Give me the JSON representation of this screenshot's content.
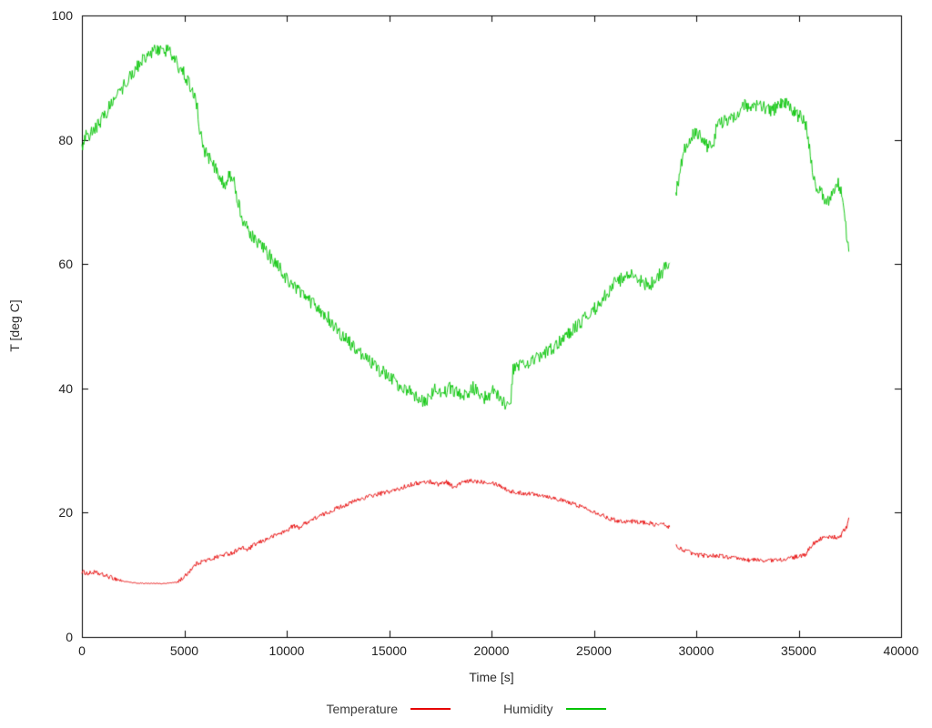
{
  "chart_data": {
    "type": "line",
    "title": "",
    "xlabel": "Time [s]",
    "ylabel": "T [deg C]",
    "xlim": [
      0,
      40000
    ],
    "ylim": [
      0,
      100
    ],
    "xticks": [
      0,
      5000,
      10000,
      15000,
      20000,
      25000,
      30000,
      35000,
      40000
    ],
    "yticks": [
      0,
      20,
      40,
      60,
      80,
      100
    ],
    "grid": false,
    "legend_position": "bottom-center",
    "axis_color": "#000000",
    "background": "#ffffff",
    "series": [
      {
        "name": "Temperature",
        "color": "#e60000",
        "noise": 0.35,
        "segments": [
          [
            [
              0,
              10.5
            ],
            [
              300,
              10.2
            ],
            [
              600,
              10.4
            ],
            [
              1000,
              10.0
            ],
            [
              1500,
              9.5
            ],
            [
              2000,
              9.0,
              0.08
            ],
            [
              2500,
              8.7,
              0.08
            ],
            [
              3200,
              8.6,
              0.08
            ],
            [
              4000,
              8.6,
              0.08
            ],
            [
              4600,
              8.8
            ],
            [
              5000,
              9.6
            ],
            [
              5300,
              10.8
            ],
            [
              5600,
              11.8
            ],
            [
              5900,
              12.2
            ],
            [
              6200,
              12.4
            ],
            [
              6600,
              12.9
            ],
            [
              7000,
              13.3
            ],
            [
              7400,
              13.6
            ],
            [
              7600,
              14.1
            ],
            [
              7900,
              14.3
            ],
            [
              8100,
              14.0
            ],
            [
              8400,
              14.8
            ],
            [
              8800,
              15.4
            ],
            [
              9200,
              16.0
            ],
            [
              9600,
              16.6
            ],
            [
              10000,
              17.1
            ],
            [
              10300,
              17.9
            ],
            [
              10600,
              17.6
            ],
            [
              11000,
              18.5
            ],
            [
              11500,
              19.3
            ],
            [
              12000,
              20.0
            ],
            [
              12500,
              20.8
            ],
            [
              13000,
              21.4
            ],
            [
              13500,
              22.1
            ],
            [
              14000,
              22.6
            ],
            [
              14500,
              23.0
            ],
            [
              15000,
              23.4
            ],
            [
              15500,
              23.8
            ],
            [
              16000,
              24.5
            ],
            [
              16500,
              24.8
            ],
            [
              17000,
              25.0
            ],
            [
              17400,
              24.6
            ],
            [
              17800,
              25.0
            ],
            [
              18200,
              24.0
            ],
            [
              18500,
              24.8
            ],
            [
              19000,
              25.1
            ],
            [
              19500,
              25.0
            ],
            [
              20000,
              24.9
            ],
            [
              20400,
              24.4
            ],
            [
              20800,
              23.6
            ],
            [
              21200,
              23.2
            ],
            [
              21800,
              23.1
            ],
            [
              22400,
              22.9
            ],
            [
              23000,
              22.4
            ],
            [
              23600,
              21.8
            ],
            [
              24200,
              21.2
            ],
            [
              24800,
              20.5
            ],
            [
              25200,
              19.9
            ],
            [
              25600,
              19.3
            ],
            [
              26000,
              18.8
            ],
            [
              26500,
              18.6
            ],
            [
              27000,
              18.6
            ],
            [
              27500,
              18.4
            ],
            [
              28000,
              18.1
            ],
            [
              28400,
              18.1
            ],
            [
              28700,
              17.7
            ]
          ],
          [
            [
              29000,
              14.6
            ],
            [
              29300,
              14.1
            ],
            [
              29700,
              13.6
            ],
            [
              30000,
              13.2
            ],
            [
              30500,
              13.1
            ],
            [
              31000,
              13.1
            ],
            [
              31500,
              12.9
            ],
            [
              32000,
              12.6
            ],
            [
              32500,
              12.4
            ],
            [
              33000,
              12.4
            ],
            [
              33500,
              12.3
            ],
            [
              34000,
              12.4
            ],
            [
              34500,
              12.6
            ],
            [
              35000,
              13.0
            ],
            [
              35300,
              13.1
            ],
            [
              35600,
              14.6
            ],
            [
              35900,
              15.6
            ],
            [
              36200,
              15.9
            ],
            [
              36600,
              16.1
            ],
            [
              37000,
              16.0
            ],
            [
              37200,
              17.1
            ],
            [
              37350,
              17.6
            ],
            [
              37450,
              19.2
            ]
          ]
        ]
      },
      {
        "name": "Humidity",
        "color": "#00c300",
        "noise": 1.1,
        "segments": [
          [
            [
              0,
              78.5
            ],
            [
              200,
              80.5
            ],
            [
              400,
              81.0
            ],
            [
              700,
              82.0
            ],
            [
              1000,
              83.5
            ],
            [
              1400,
              85.5
            ],
            [
              1800,
              87.5
            ],
            [
              2200,
              89.5
            ],
            [
              2600,
              91.5
            ],
            [
              3000,
              93.0
            ],
            [
              3400,
              94.0
            ],
            [
              3800,
              94.5
            ],
            [
              4200,
              94.3
            ],
            [
              4500,
              93.0
            ],
            [
              4800,
              91.5
            ],
            [
              5100,
              90.0
            ],
            [
              5400,
              88.0
            ],
            [
              5600,
              86.0
            ],
            [
              5750,
              81.5
            ],
            [
              5900,
              79.0
            ],
            [
              6100,
              77.5
            ],
            [
              6400,
              76.0
            ],
            [
              6700,
              74.5
            ],
            [
              7000,
              72.5
            ],
            [
              7200,
              74.8
            ],
            [
              7400,
              73.5
            ],
            [
              7600,
              70.5
            ],
            [
              7900,
              66.5
            ],
            [
              8200,
              65.0
            ],
            [
              8500,
              63.5
            ],
            [
              9000,
              62.0
            ],
            [
              9500,
              60.0
            ],
            [
              10000,
              57.5
            ],
            [
              10500,
              56.0
            ],
            [
              11000,
              54.5
            ],
            [
              11500,
              53.0
            ],
            [
              12000,
              51.5
            ],
            [
              12500,
              49.0
            ],
            [
              13000,
              47.5
            ],
            [
              13500,
              46.0
            ],
            [
              14000,
              44.5
            ],
            [
              14500,
              43.0
            ],
            [
              15000,
              42.0
            ],
            [
              15500,
              40.3
            ],
            [
              16000,
              39.5
            ],
            [
              16500,
              37.8
            ],
            [
              17000,
              38.6
            ],
            [
              17300,
              40.0
            ],
            [
              17700,
              39.4
            ],
            [
              18000,
              40.2
            ],
            [
              18400,
              39.0
            ],
            [
              18800,
              38.6
            ],
            [
              19100,
              40.2
            ],
            [
              19400,
              39.0
            ],
            [
              19800,
              38.4
            ],
            [
              20100,
              39.6
            ],
            [
              20400,
              38.6
            ],
            [
              20700,
              37.0
            ],
            [
              20950,
              38.5
            ],
            [
              21050,
              42.8
            ],
            [
              21400,
              43.6
            ],
            [
              21800,
              44.2
            ],
            [
              22200,
              44.8
            ],
            [
              22600,
              45.6
            ],
            [
              23000,
              46.6
            ],
            [
              23500,
              48.0
            ],
            [
              24000,
              49.6
            ],
            [
              24500,
              51.0
            ],
            [
              25000,
              52.6
            ],
            [
              25500,
              54.6
            ],
            [
              26000,
              57.0
            ],
            [
              26400,
              57.6
            ],
            [
              26800,
              58.2
            ],
            [
              27100,
              57.6
            ],
            [
              27400,
              57.0
            ],
            [
              27700,
              56.6
            ],
            [
              28000,
              57.6
            ],
            [
              28300,
              58.6
            ],
            [
              28700,
              60.2
            ]
          ],
          [
            [
              29000,
              71.0
            ],
            [
              29200,
              75.0
            ],
            [
              29400,
              78.0
            ],
            [
              29600,
              80.0
            ],
            [
              29900,
              81.0
            ],
            [
              30200,
              80.8
            ],
            [
              30500,
              79.0
            ],
            [
              30800,
              78.8
            ],
            [
              31000,
              82.0
            ],
            [
              31300,
              83.0
            ],
            [
              31700,
              83.6
            ],
            [
              32100,
              84.6
            ],
            [
              32400,
              85.6
            ],
            [
              32700,
              85.0
            ],
            [
              33100,
              85.6
            ],
            [
              33400,
              85.0
            ],
            [
              33700,
              84.6
            ],
            [
              34100,
              85.8
            ],
            [
              34300,
              86.0
            ],
            [
              34600,
              85.4
            ],
            [
              34900,
              84.0
            ],
            [
              35100,
              83.6
            ],
            [
              35400,
              82.0
            ],
            [
              35600,
              77.0
            ],
            [
              35800,
              73.0
            ],
            [
              36100,
              71.5
            ],
            [
              36400,
              70.0
            ],
            [
              36700,
              72.0
            ],
            [
              36900,
              73.2
            ],
            [
              37100,
              71.0
            ],
            [
              37300,
              66.0
            ],
            [
              37450,
              62.0
            ]
          ]
        ]
      }
    ]
  }
}
